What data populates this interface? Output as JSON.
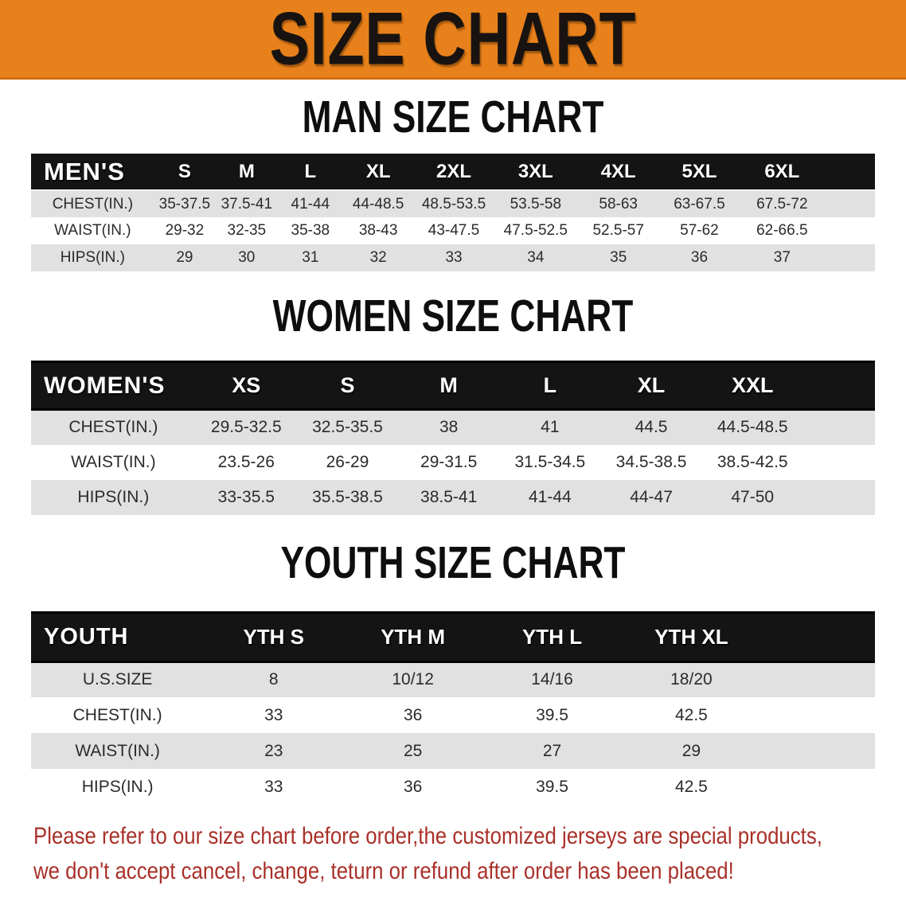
{
  "banner": {
    "title": "SIZE CHART"
  },
  "colors": {
    "banner_bg": "#E8811B",
    "banner_border": "#D06F12",
    "header_bar": "#141414",
    "row_stripe": "#E1E1E1",
    "footer_text": "#A93029"
  },
  "sections": [
    {
      "id": "men",
      "heading": "MAN SIZE CHART",
      "table": {
        "label": "MEN'S",
        "columns": [
          "S",
          "M",
          "L",
          "XL",
          "2XL",
          "3XL",
          "4XL",
          "5XL",
          "6XL"
        ],
        "rows": [
          {
            "label": "CHEST(IN.)",
            "values": [
              "35-37.5",
              "37.5-41",
              "41-44",
              "44-48.5",
              "48.5-53.5",
              "53.5-58",
              "58-63",
              "63-67.5",
              "67.5-72"
            ]
          },
          {
            "label": "WAIST(IN.)",
            "values": [
              "29-32",
              "32-35",
              "35-38",
              "38-43",
              "43-47.5",
              "47.5-52.5",
              "52.5-57",
              "57-62",
              "62-66.5"
            ]
          },
          {
            "label": "HIPS(IN.)",
            "values": [
              "29",
              "30",
              "31",
              "32",
              "33",
              "34",
              "35",
              "36",
              "37"
            ]
          }
        ]
      }
    },
    {
      "id": "women",
      "heading": "WOMEN SIZE CHART",
      "table": {
        "label": "WOMEN'S",
        "columns": [
          "XS",
          "S",
          "M",
          "L",
          "XL",
          "XXL"
        ],
        "rows": [
          {
            "label": "CHEST(IN.)",
            "values": [
              "29.5-32.5",
              "32.5-35.5",
              "38",
              "41",
              "44.5",
              "44.5-48.5"
            ]
          },
          {
            "label": "WAIST(IN.)",
            "values": [
              "23.5-26",
              "26-29",
              "29-31.5",
              "31.5-34.5",
              "34.5-38.5",
              "38.5-42.5"
            ]
          },
          {
            "label": "HIPS(IN.)",
            "values": [
              "33-35.5",
              "35.5-38.5",
              "38.5-41",
              "41-44",
              "44-47",
              "47-50"
            ]
          }
        ]
      }
    },
    {
      "id": "youth",
      "heading": "YOUTH SIZE CHART",
      "table": {
        "label": "YOUTH",
        "columns": [
          "YTH S",
          "YTH M",
          "YTH L",
          "YTH XL"
        ],
        "rows": [
          {
            "label": "U.S.SIZE",
            "values": [
              "8",
              "10/12",
              "14/16",
              "18/20"
            ]
          },
          {
            "label": "CHEST(IN.)",
            "values": [
              "33",
              "36",
              "39.5",
              "42.5"
            ]
          },
          {
            "label": "WAIST(IN.)",
            "values": [
              "23",
              "25",
              "27",
              "29"
            ]
          },
          {
            "label": "HIPS(IN.)",
            "values": [
              "33",
              "36",
              "39.5",
              "42.5"
            ]
          }
        ]
      }
    }
  ],
  "footer": {
    "line1": "Please refer to our size chart before order,the customized jerseys are special products,",
    "line2": "we don't accept cancel, change, teturn or refund after order has been placed!"
  }
}
